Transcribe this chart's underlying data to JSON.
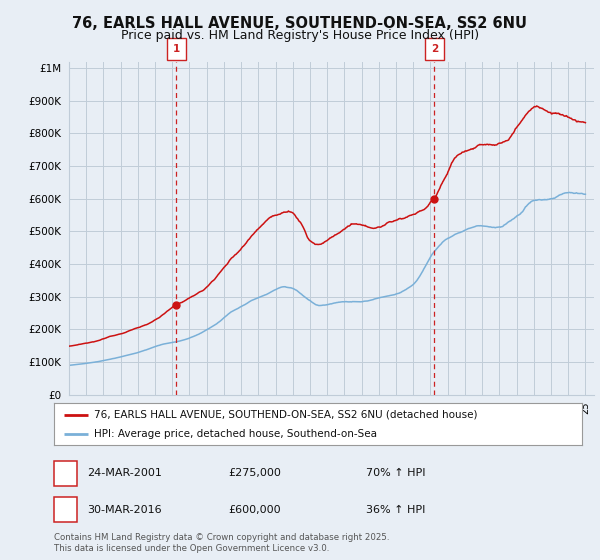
{
  "title_line1": "76, EARLS HALL AVENUE, SOUTHEND-ON-SEA, SS2 6NU",
  "title_line2": "Price paid vs. HM Land Registry's House Price Index (HPI)",
  "title_fontsize": 10.5,
  "subtitle_fontsize": 9,
  "ylabel_ticks": [
    "£0",
    "£100K",
    "£200K",
    "£300K",
    "£400K",
    "£500K",
    "£600K",
    "£700K",
    "£800K",
    "£900K",
    "£1M"
  ],
  "ytick_values": [
    0,
    100000,
    200000,
    300000,
    400000,
    500000,
    600000,
    700000,
    800000,
    900000,
    1000000
  ],
  "ylim": [
    0,
    1020000
  ],
  "xlim_start": 1995.0,
  "xlim_end": 2025.5,
  "background_color": "#e8eef5",
  "plot_bg_color": "#e8eef5",
  "grid_color": "#c0ccd8",
  "sale1_x": 2001.23,
  "sale1_y": 275000,
  "sale1_label": "1",
  "sale2_x": 2016.23,
  "sale2_y": 600000,
  "sale2_label": "2",
  "vline_color": "#cc2222",
  "hpi_line_color": "#7ab0d8",
  "price_line_color": "#cc1111",
  "legend_label1": "76, EARLS HALL AVENUE, SOUTHEND-ON-SEA, SS2 6NU (detached house)",
  "legend_label2": "HPI: Average price, detached house, Southend-on-Sea",
  "annotation1_date": "24-MAR-2001",
  "annotation1_price": "£275,000",
  "annotation1_hpi": "70% ↑ HPI",
  "annotation2_date": "30-MAR-2016",
  "annotation2_price": "£600,000",
  "annotation2_hpi": "36% ↑ HPI",
  "footnote": "Contains HM Land Registry data © Crown copyright and database right 2025.\nThis data is licensed under the Open Government Licence v3.0."
}
